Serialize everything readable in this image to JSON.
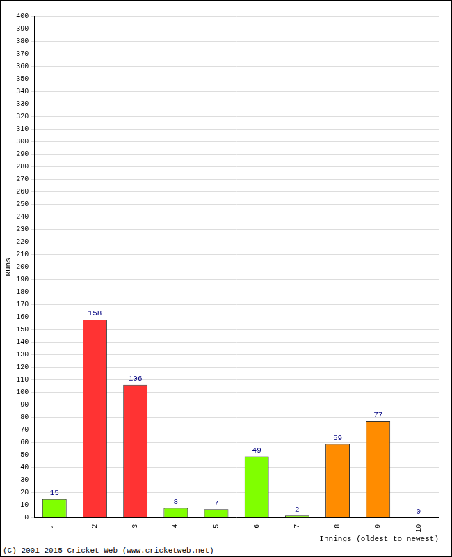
{
  "chart_data": {
    "type": "bar",
    "x_label": "Innings (oldest to newest)",
    "y_label": "Runs",
    "annotations": [
      "(C) 2001-2015 Cricket Web (www.cricketweb.net)"
    ],
    "categories": [
      "1",
      "2",
      "3",
      "4",
      "5",
      "6",
      "7",
      "8",
      "9",
      "10"
    ],
    "values": [
      15,
      158,
      106,
      8,
      7,
      49,
      2,
      59,
      77,
      0
    ],
    "colors": [
      "#80ff00",
      "#ff3333",
      "#ff3333",
      "#80ff00",
      "#80ff00",
      "#80ff00",
      "#80ff00",
      "#ff8c00",
      "#ff8c00",
      "#80ff00"
    ],
    "ylim": [
      0,
      400
    ],
    "yticks": [
      0,
      10,
      20,
      30,
      40,
      50,
      60,
      70,
      80,
      90,
      100,
      110,
      120,
      130,
      140,
      150,
      160,
      170,
      180,
      190,
      200,
      210,
      220,
      230,
      240,
      250,
      260,
      270,
      280,
      290,
      300,
      310,
      320,
      330,
      340,
      350,
      360,
      370,
      380,
      390,
      400
    ],
    "grid": true,
    "data_labels": true
  }
}
